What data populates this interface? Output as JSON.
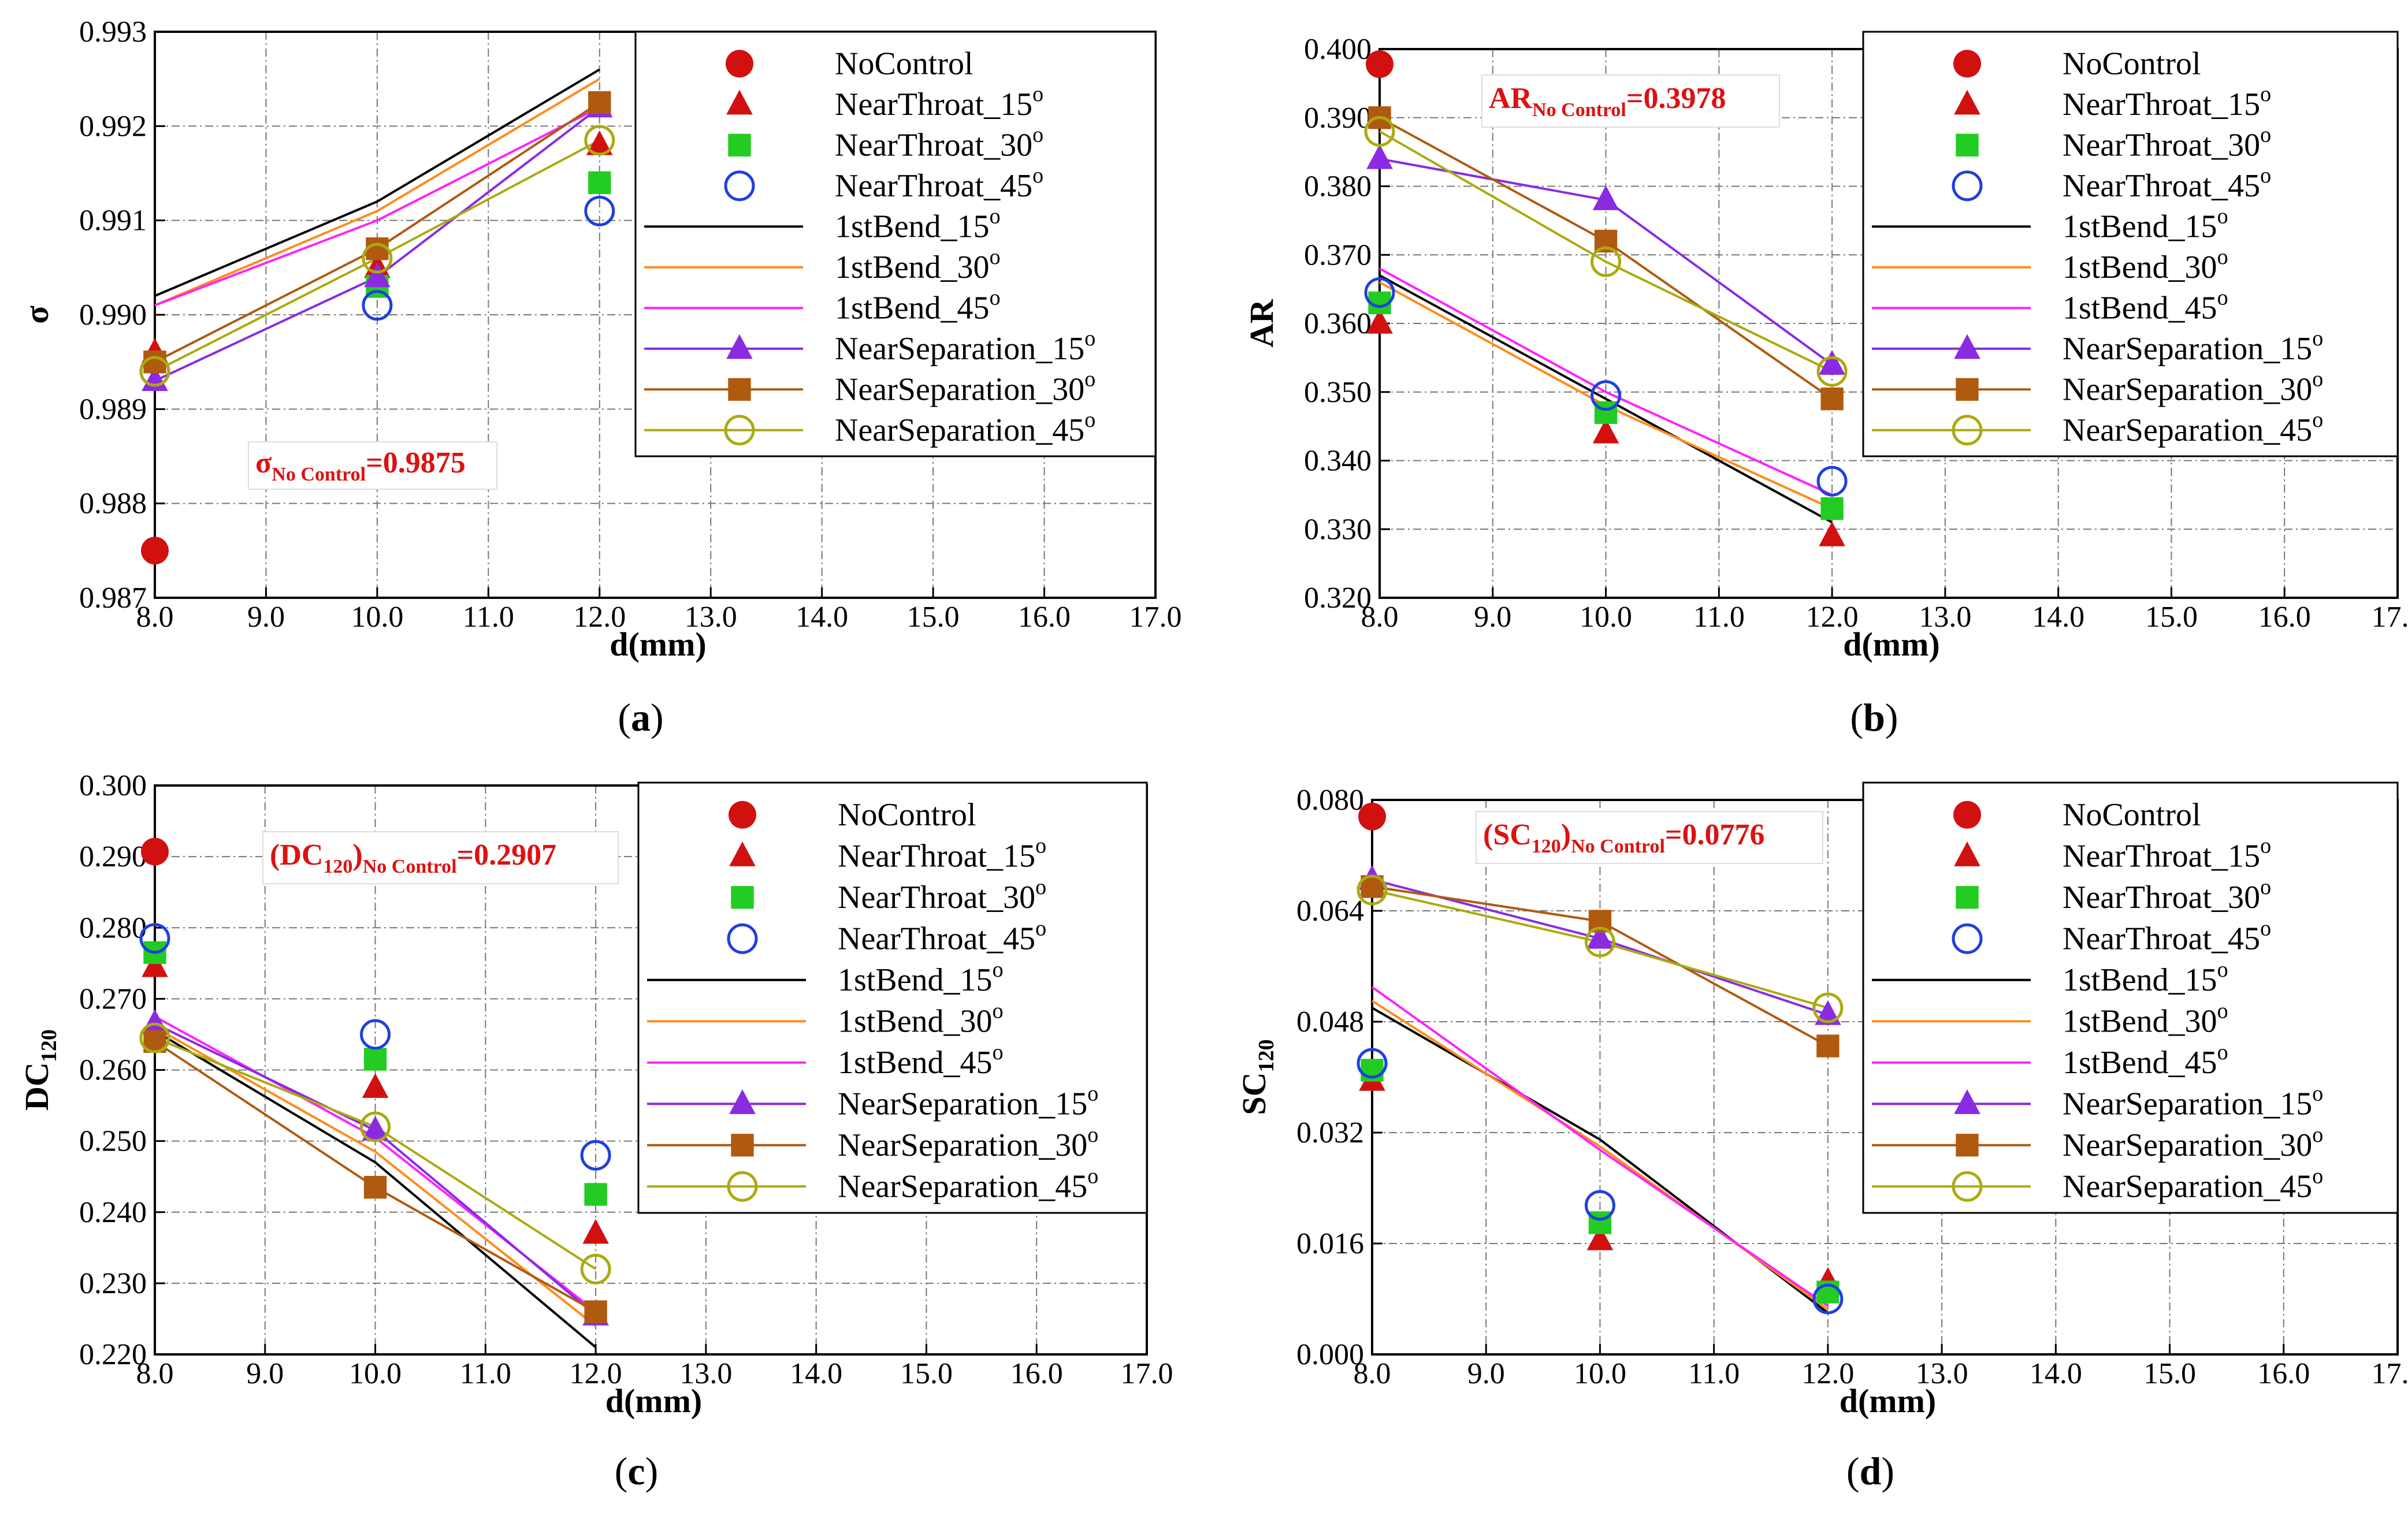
{
  "colors": {
    "NoControl": "#d11010",
    "NearThroat_15": "#d11010",
    "NearThroat_30": "#22cc22",
    "NearThroat_45": "#1f3fe0",
    "1stBend_15": "#000000",
    "1stBend_30": "#ff8c1a",
    "1stBend_45": "#ff22ff",
    "NearSeparation_15": "#8a2be2",
    "NearSeparation_30": "#b05a10",
    "NearSeparation_45": "#aaaa10",
    "annotation": "#dd1111"
  },
  "legend": [
    {
      "key": "NoControl",
      "label": "NoControl",
      "sup": "",
      "type": "marker",
      "marker": "circle-filled"
    },
    {
      "key": "NearThroat_15",
      "label": "NearThroat_15",
      "sup": "o",
      "type": "marker",
      "marker": "triangle"
    },
    {
      "key": "NearThroat_30",
      "label": "NearThroat_30",
      "sup": "o",
      "type": "marker",
      "marker": "square"
    },
    {
      "key": "NearThroat_45",
      "label": "NearThroat_45",
      "sup": "o",
      "type": "marker",
      "marker": "circle-open"
    },
    {
      "key": "1stBend_15",
      "label": "1stBend_15",
      "sup": "o",
      "type": "line",
      "marker": "none"
    },
    {
      "key": "1stBend_30",
      "label": "1stBend_30",
      "sup": "o",
      "type": "line",
      "marker": "none"
    },
    {
      "key": "1stBend_45",
      "label": "1stBend_45",
      "sup": "o",
      "type": "line",
      "marker": "none"
    },
    {
      "key": "NearSeparation_15",
      "label": "NearSeparation_15",
      "sup": "o",
      "type": "both",
      "marker": "triangle"
    },
    {
      "key": "NearSeparation_30",
      "label": "NearSeparation_30",
      "sup": "o",
      "type": "both",
      "marker": "square"
    },
    {
      "key": "NearSeparation_45",
      "label": "NearSeparation_45",
      "sup": "o",
      "type": "both",
      "marker": "circle-open"
    }
  ],
  "chart_data": [
    {
      "id": "a",
      "type": "line",
      "caption_letter": "a",
      "xlabel": "d(mm)",
      "ylabel": "σ",
      "ylabel_sub": "",
      "x": [
        8.0,
        10.0,
        12.0
      ],
      "xlim": [
        8.0,
        17.0
      ],
      "ylim": [
        0.987,
        0.993
      ],
      "xticks": [
        "8.0",
        "9.0",
        "10.0",
        "11.0",
        "12.0",
        "13.0",
        "14.0",
        "15.0",
        "16.0",
        "17.0"
      ],
      "yticks": [
        "0.987",
        "0.988",
        "0.989",
        "0.990",
        "0.991",
        "0.992",
        "0.993"
      ],
      "annotation": {
        "main": "σ",
        "sub": "No Control",
        "value": "=0.9875"
      },
      "series": [
        {
          "name": "NoControl",
          "values": [
            0.9875,
            null,
            null
          ]
        },
        {
          "name": "NearThroat_15",
          "values": [
            0.9896,
            0.9905,
            0.9918
          ]
        },
        {
          "name": "NearThroat_30",
          "values": [
            0.9895,
            0.9903,
            0.9914
          ]
        },
        {
          "name": "NearThroat_45",
          "values": [
            0.9894,
            0.9901,
            0.9911
          ]
        },
        {
          "name": "1stBend_15",
          "values": [
            0.9902,
            0.9912,
            0.9926
          ]
        },
        {
          "name": "1stBend_30",
          "values": [
            0.9901,
            0.9911,
            0.9925
          ]
        },
        {
          "name": "1stBend_45",
          "values": [
            0.9901,
            0.991,
            0.9922
          ]
        },
        {
          "name": "NearSeparation_15",
          "values": [
            0.9893,
            0.9904,
            0.9922
          ]
        },
        {
          "name": "NearSeparation_30",
          "values": [
            0.9895,
            0.9907,
            0.99225
          ]
        },
        {
          "name": "NearSeparation_45",
          "values": [
            0.9894,
            0.9906,
            0.99185
          ]
        }
      ]
    },
    {
      "id": "b",
      "type": "line",
      "caption_letter": "b",
      "xlabel": "d(mm)",
      "ylabel": "AR",
      "ylabel_sub": "",
      "x": [
        8.0,
        10.0,
        12.0
      ],
      "xlim": [
        8.0,
        17.0
      ],
      "ylim": [
        0.32,
        0.4
      ],
      "xticks": [
        "8.0",
        "9.0",
        "10.0",
        "11.0",
        "12.0",
        "13.0",
        "14.0",
        "15.0",
        "16.0",
        "17.0"
      ],
      "yticks": [
        "0.320",
        "0.330",
        "0.340",
        "0.350",
        "0.360",
        "0.370",
        "0.380",
        "0.390",
        "0.400"
      ],
      "annotation": {
        "main": "AR",
        "sub": "No Control",
        "value": "=0.3978"
      },
      "series": [
        {
          "name": "NoControl",
          "values": [
            0.3978,
            null,
            null
          ]
        },
        {
          "name": "NearThroat_15",
          "values": [
            0.36,
            0.344,
            0.329
          ]
        },
        {
          "name": "NearThroat_30",
          "values": [
            0.363,
            0.347,
            0.333
          ]
        },
        {
          "name": "NearThroat_45",
          "values": [
            0.3645,
            0.3495,
            0.337
          ]
        },
        {
          "name": "1stBend_15",
          "values": [
            0.367,
            0.349,
            0.331
          ]
        },
        {
          "name": "1stBend_30",
          "values": [
            0.366,
            0.348,
            0.333
          ]
        },
        {
          "name": "1stBend_45",
          "values": [
            0.368,
            0.35,
            0.335
          ]
        },
        {
          "name": "NearSeparation_15",
          "values": [
            0.384,
            0.378,
            0.354
          ]
        },
        {
          "name": "NearSeparation_30",
          "values": [
            0.39,
            0.372,
            0.349
          ]
        },
        {
          "name": "NearSeparation_45",
          "values": [
            0.388,
            0.369,
            0.353
          ]
        }
      ]
    },
    {
      "id": "c",
      "type": "line",
      "caption_letter": "c",
      "xlabel": "d(mm)",
      "ylabel": "DC",
      "ylabel_sub": "120",
      "x": [
        8.0,
        10.0,
        12.0
      ],
      "xlim": [
        8.0,
        17.0
      ],
      "ylim": [
        0.22,
        0.3
      ],
      "xticks": [
        "8.0",
        "9.0",
        "10.0",
        "11.0",
        "12.0",
        "13.0",
        "14.0",
        "15.0",
        "16.0",
        "17.0"
      ],
      "yticks": [
        "0.220",
        "0.230",
        "0.240",
        "0.250",
        "0.260",
        "0.270",
        "0.280",
        "0.290",
        "0.300"
      ],
      "annotation": {
        "main": "(DC",
        "sub1": "120",
        "mid": ")",
        "sub": "No Control",
        "value": "=0.2907"
      },
      "series": [
        {
          "name": "NoControl",
          "values": [
            0.2907,
            null,
            null
          ]
        },
        {
          "name": "NearThroat_15",
          "values": [
            0.2745,
            0.2575,
            0.237
          ]
        },
        {
          "name": "NearThroat_30",
          "values": [
            0.2765,
            0.2615,
            0.2425
          ]
        },
        {
          "name": "NearThroat_45",
          "values": [
            0.2785,
            0.265,
            0.248
          ]
        },
        {
          "name": "1stBend_15",
          "values": [
            0.2655,
            0.247,
            0.221
          ]
        },
        {
          "name": "1stBend_30",
          "values": [
            0.266,
            0.2485,
            0.224
          ]
        },
        {
          "name": "1stBend_45",
          "values": [
            0.2675,
            0.2505,
            0.226
          ]
        },
        {
          "name": "NearSeparation_15",
          "values": [
            0.2665,
            0.2515,
            0.2255
          ]
        },
        {
          "name": "NearSeparation_30",
          "values": [
            0.264,
            0.2435,
            0.226
          ]
        },
        {
          "name": "NearSeparation_45",
          "values": [
            0.2645,
            0.252,
            0.232
          ]
        }
      ]
    },
    {
      "id": "d",
      "type": "line",
      "caption_letter": "d",
      "xlabel": "d(mm)",
      "ylabel": "SC",
      "ylabel_sub": "120",
      "x": [
        8.0,
        10.0,
        12.0
      ],
      "xlim": [
        8.0,
        17.0
      ],
      "ylim": [
        0.0,
        0.08
      ],
      "xticks": [
        "8.0",
        "9.0",
        "10.0",
        "11.0",
        "12.0",
        "13.0",
        "14.0",
        "15.0",
        "16.0",
        "17.0"
      ],
      "yticks": [
        "0.000",
        "0.016",
        "0.032",
        "0.048",
        "0.064",
        "0.080"
      ],
      "annotation": {
        "main": "(SC",
        "sub1": "120",
        "mid": ")",
        "sub": "No Control",
        "value": "=0.0776"
      },
      "series": [
        {
          "name": "NoControl",
          "values": [
            0.0776,
            null,
            null
          ]
        },
        {
          "name": "NearThroat_15",
          "values": [
            0.0395,
            0.0165,
            0.0105
          ]
        },
        {
          "name": "NearThroat_30",
          "values": [
            0.041,
            0.019,
            0.009
          ]
        },
        {
          "name": "NearThroat_45",
          "values": [
            0.042,
            0.0215,
            0.008
          ]
        },
        {
          "name": "1stBend_15",
          "values": [
            0.05,
            0.031,
            0.006
          ]
        },
        {
          "name": "1stBend_30",
          "values": [
            0.051,
            0.03,
            0.0065
          ]
        },
        {
          "name": "1stBend_45",
          "values": [
            0.053,
            0.0295,
            0.007
          ]
        },
        {
          "name": "NearSeparation_15",
          "values": [
            0.0685,
            0.06,
            0.049
          ]
        },
        {
          "name": "NearSeparation_30",
          "values": [
            0.0675,
            0.0625,
            0.0445
          ]
        },
        {
          "name": "NearSeparation_45",
          "values": [
            0.067,
            0.0595,
            0.05
          ]
        }
      ]
    }
  ]
}
